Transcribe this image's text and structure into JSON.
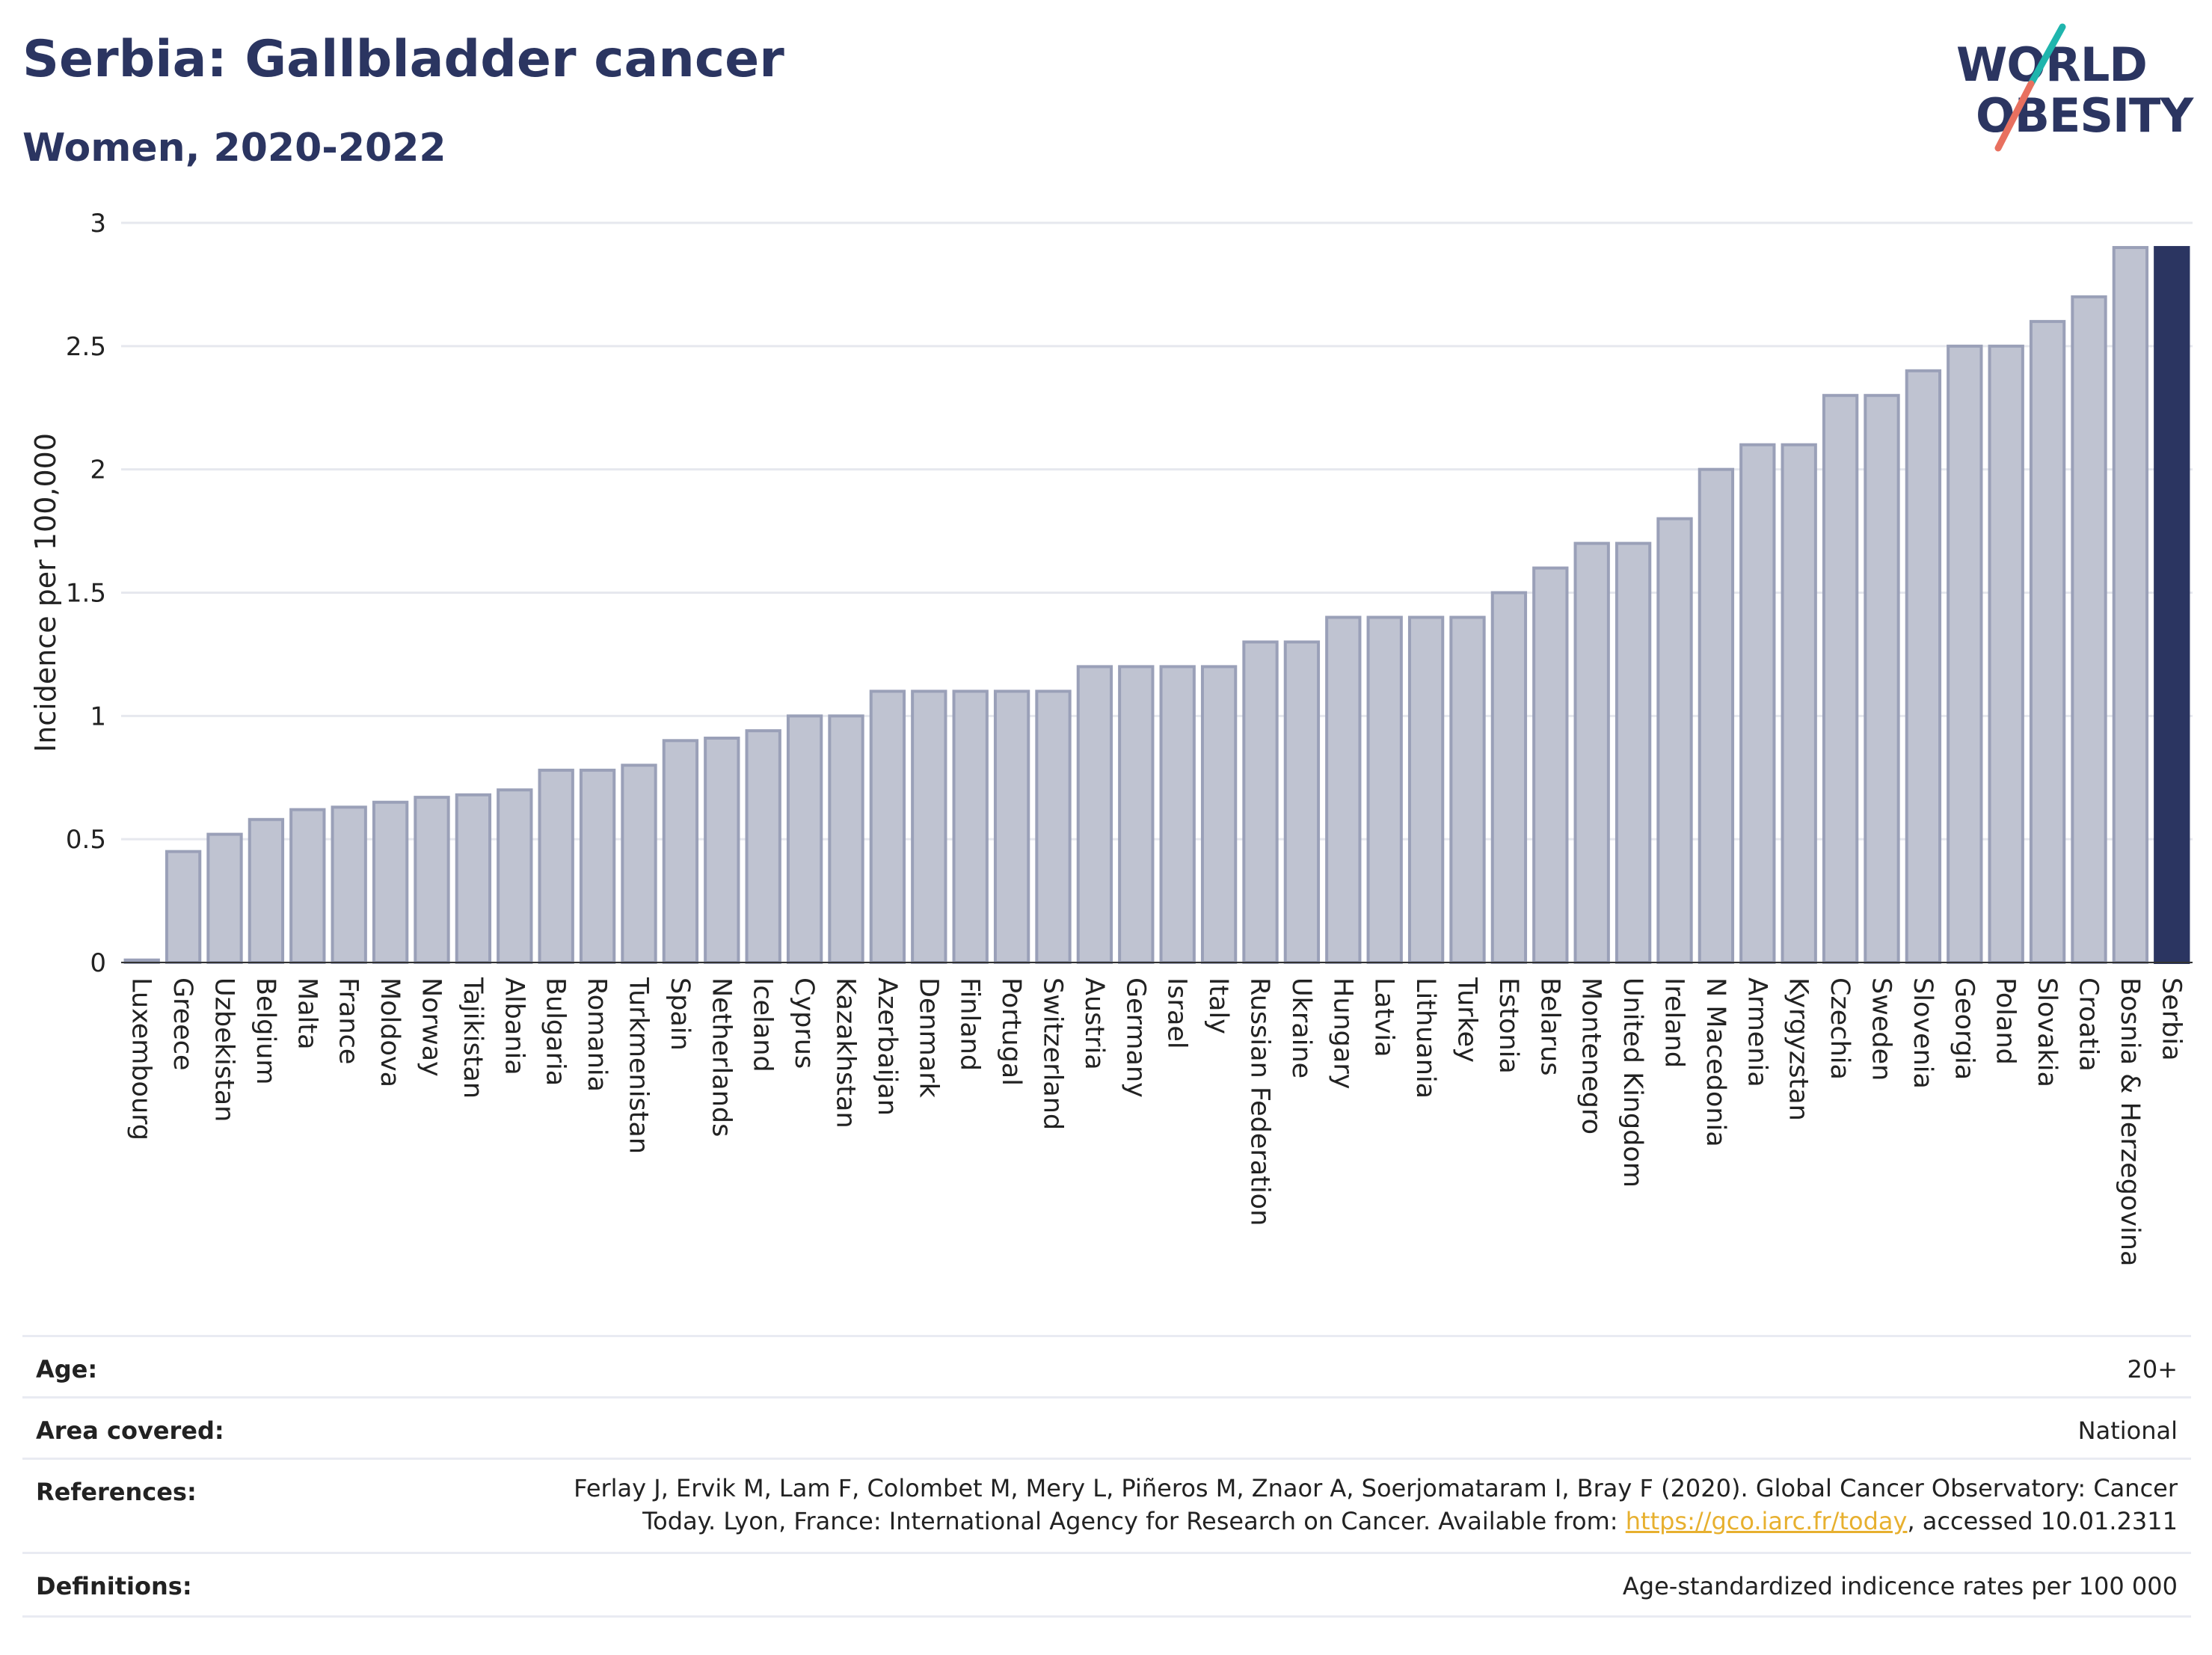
{
  "title": "Serbia: Gallbladder cancer",
  "subtitle": "Women, 2020-2022",
  "logo": {
    "line1": "WORLD",
    "line2": "OBESITY"
  },
  "colors": {
    "bar": "#bfc3d1",
    "bar_edge": "#9aa0b8",
    "highlight": "#2b3561",
    "accent_teal": "#1fb5ad",
    "accent_red": "#e8705f",
    "link": "#e7b02f"
  },
  "chart_data": {
    "type": "bar",
    "ylabel": "Incidence per 100,000",
    "ylim": [
      0,
      3
    ],
    "yticks": [
      "0",
      "0.5",
      "1",
      "1.5",
      "2",
      "2.5",
      "3"
    ],
    "categories": [
      "Luxembourg",
      "Greece",
      "Uzbekistan",
      "Belgium",
      "Malta",
      "France",
      "Moldova",
      "Norway",
      "Tajikistan",
      "Albania",
      "Bulgaria",
      "Romania",
      "Turkmenistan",
      "Spain",
      "Netherlands",
      "Iceland",
      "Cyprus",
      "Kazakhstan",
      "Azerbaijan",
      "Denmark",
      "Finland",
      "Portugal",
      "Switzerland",
      "Austria",
      "Germany",
      "Israel",
      "Italy",
      "Russian Federation",
      "Ukraine",
      "Hungary",
      "Latvia",
      "Lithuania",
      "Turkey",
      "Estonia",
      "Belarus",
      "Montenegro",
      "United Kingdom",
      "Ireland",
      "N Macedonia",
      "Armenia",
      "Kyrgyzstan",
      "Czechia",
      "Sweden",
      "Slovenia",
      "Georgia",
      "Poland",
      "Slovakia",
      "Croatia",
      "Bosnia & Herzegovina",
      "Serbia"
    ],
    "values": [
      0.01,
      0.45,
      0.52,
      0.58,
      0.62,
      0.63,
      0.65,
      0.67,
      0.68,
      0.7,
      0.78,
      0.78,
      0.8,
      0.9,
      0.91,
      0.94,
      1.0,
      1.0,
      1.1,
      1.1,
      1.1,
      1.1,
      1.1,
      1.2,
      1.2,
      1.2,
      1.2,
      1.3,
      1.3,
      1.4,
      1.4,
      1.4,
      1.4,
      1.5,
      1.6,
      1.7,
      1.7,
      1.8,
      2.0,
      2.1,
      2.1,
      2.3,
      2.3,
      2.4,
      2.5,
      2.5,
      2.6,
      2.7,
      2.9,
      2.9
    ],
    "highlight": "Serbia",
    "grid": true
  },
  "meta": {
    "age_label": "Age:",
    "age_value": "20+",
    "area_label": "Area covered:",
    "area_value": "National",
    "references_label": "References:",
    "references_line1": "Ferlay J, Ervik M, Lam F, Colombet M, Mery L, Piñeros M, Znaor A, Soerjomataram I, Bray F (2020). Global Cancer Observatory: Cancer",
    "references_line2_pre": "Today. Lyon, France: International Agency for Research on Cancer. Available from: ",
    "references_link": "https://gco.iarc.fr/today",
    "references_line2_post": ", accessed 10.01.2311",
    "definitions_label": "Definitions:",
    "definitions_value": "Age-standardized indicence rates per 100 000"
  }
}
